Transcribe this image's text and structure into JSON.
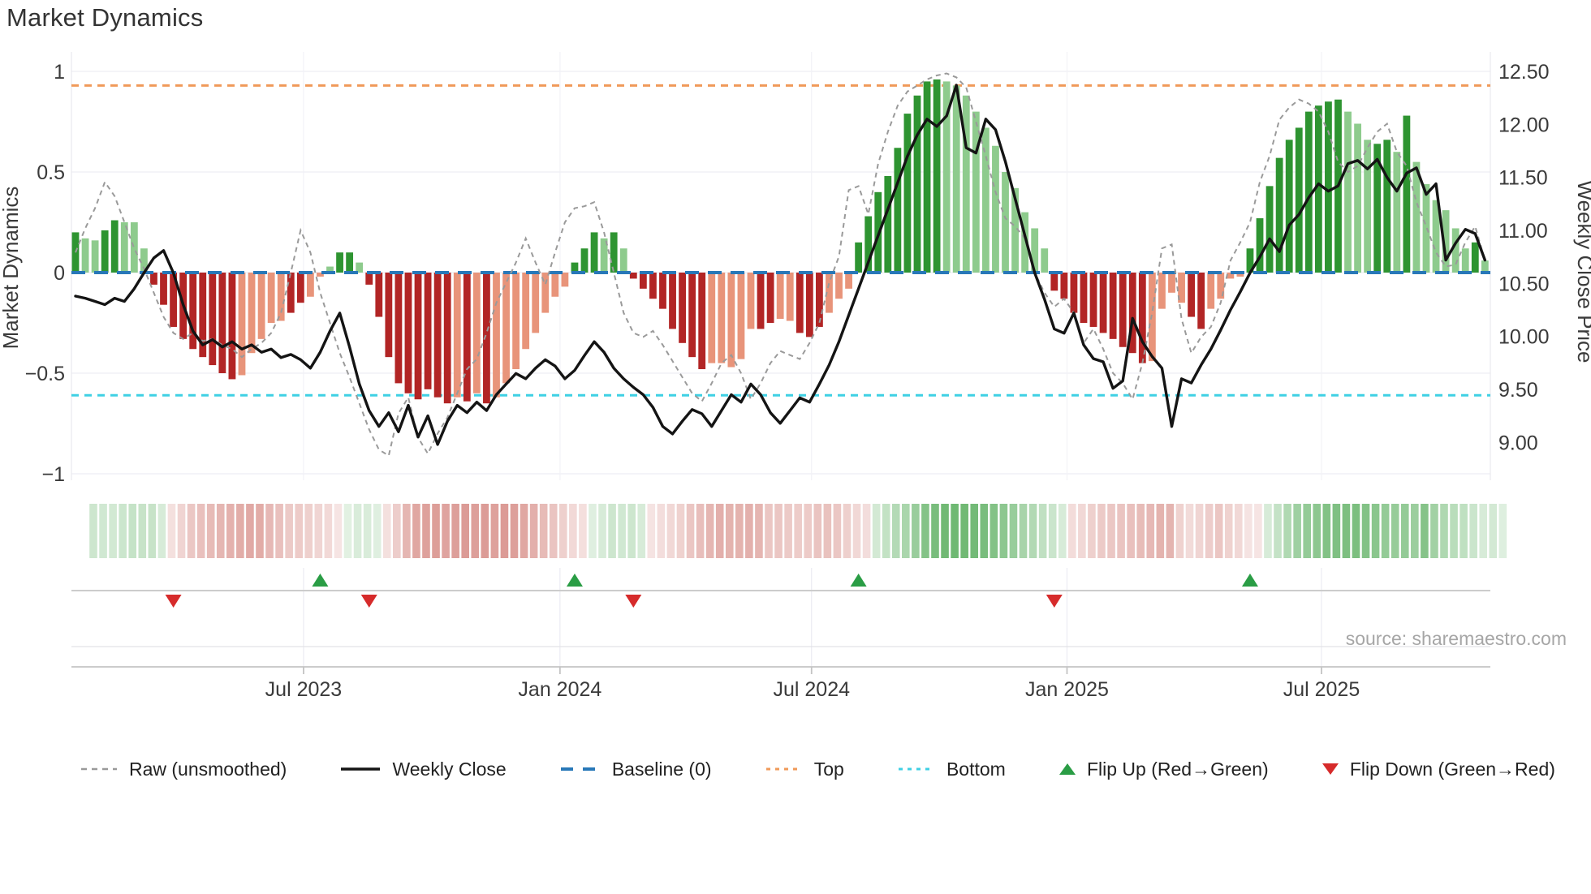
{
  "title": "Market Dynamics",
  "source_note": "source: sharemaestro.com",
  "legend": {
    "raw": "Raw (unsmoothed)",
    "weekly": "Weekly Close",
    "baseline": "Baseline (0)",
    "top": "Top",
    "bottom": "Bottom",
    "flip_up": "Flip Up (Red→Green)",
    "flip_down": "Flip Down (Green→Red)"
  },
  "colors": {
    "bar_green_dark": "#2e9431",
    "bar_green_light": "#8ecb8d",
    "bar_red_dark": "#b22525",
    "bar_red_salmon": "#e8947a",
    "baseline_blue": "#2878b8",
    "top_orange": "#f09a5a",
    "bottom_cyan": "#3fd0e4",
    "price_black": "#141414",
    "raw_gray": "#9a9a9a",
    "flip_up_green": "#2a9d45",
    "flip_down_red": "#d62b2b",
    "grid": "#ededf3",
    "axis_text": "#3a3a3a",
    "source_text": "#a6a6a6"
  },
  "chart_data": {
    "type": "bar",
    "title": "Market Dynamics",
    "ylabel_left": "Market Dynamics",
    "ylabel_right": "Weekly Close Price",
    "y_left_ticks": {
      "labels": [
        "1",
        "0.5",
        "0",
        "−0.5",
        "−1"
      ],
      "values": [
        1,
        0.5,
        0,
        -0.5,
        -1
      ]
    },
    "y_right_ticks": {
      "labels": [
        "12.50",
        "12.00",
        "11.50",
        "11.00",
        "10.50",
        "10.00",
        "9.50",
        "9.00"
      ],
      "values": [
        12.5,
        12.0,
        11.5,
        11.0,
        10.5,
        10.0,
        9.5,
        9.0
      ]
    },
    "x_ticks": {
      "labels": [
        "Jul 2023",
        "Jan 2024",
        "Jul 2024",
        "Jan 2025",
        "Jul 2025"
      ],
      "week_index": [
        23.3,
        49.5,
        75.2,
        101.3,
        127.3
      ]
    },
    "reference_lines": {
      "baseline": 0,
      "top": 0.93,
      "bottom": -0.61
    },
    "weeks_total": 145,
    "series": [
      {
        "name": "Market Dynamics (weekly bars)",
        "type": "bar",
        "values": [
          0.2,
          0.17,
          0.16,
          0.21,
          0.26,
          0.25,
          0.25,
          0.12,
          -0.06,
          -0.16,
          -0.27,
          -0.33,
          -0.38,
          -0.42,
          -0.46,
          -0.5,
          -0.53,
          -0.51,
          -0.4,
          -0.33,
          -0.25,
          -0.24,
          -0.2,
          -0.15,
          -0.12,
          -0.02,
          0.03,
          0.1,
          0.1,
          0.05,
          -0.06,
          -0.22,
          -0.42,
          -0.55,
          -0.6,
          -0.63,
          -0.58,
          -0.62,
          -0.65,
          -0.62,
          -0.64,
          -0.6,
          -0.65,
          -0.62,
          -0.55,
          -0.48,
          -0.38,
          -0.3,
          -0.2,
          -0.12,
          -0.07,
          0.05,
          0.12,
          0.2,
          0.17,
          0.2,
          0.12,
          -0.03,
          -0.08,
          -0.13,
          -0.18,
          -0.28,
          -0.35,
          -0.42,
          -0.48,
          -0.45,
          -0.45,
          -0.47,
          -0.43,
          -0.28,
          -0.28,
          -0.25,
          -0.23,
          -0.24,
          -0.3,
          -0.32,
          -0.27,
          -0.2,
          -0.13,
          -0.08,
          0.15,
          0.28,
          0.4,
          0.48,
          0.62,
          0.79,
          0.88,
          0.95,
          0.96,
          0.95,
          0.93,
          0.88,
          0.8,
          0.72,
          0.63,
          0.5,
          0.42,
          0.3,
          0.22,
          0.12,
          -0.09,
          -0.13,
          -0.2,
          -0.25,
          -0.27,
          -0.3,
          -0.33,
          -0.37,
          -0.4,
          -0.45,
          -0.44,
          -0.18,
          -0.1,
          -0.15,
          -0.22,
          -0.28,
          -0.18,
          -0.13,
          -0.03,
          -0.02,
          0.12,
          0.27,
          0.43,
          0.57,
          0.66,
          0.72,
          0.8,
          0.83,
          0.85,
          0.86,
          0.8,
          0.74,
          0.66,
          0.64,
          0.66,
          0.6,
          0.78,
          0.55,
          0.44,
          0.36,
          0.31,
          0.22,
          0.12,
          0.15,
          0.06
        ],
        "shades": [
          "gd",
          "gl",
          "gl",
          "gd",
          "gd",
          "gl",
          "gl",
          "gl",
          "rd",
          "rd",
          "rd",
          "rd",
          "rd",
          "rd",
          "rd",
          "rd",
          "rd",
          "rs",
          "rs",
          "rs",
          "rs",
          "rs",
          "rd",
          "rd",
          "rs",
          "rs",
          "gl",
          "gd",
          "gd",
          "gl",
          "rd",
          "rd",
          "rd",
          "rd",
          "rd",
          "rd",
          "rd",
          "rd",
          "rd",
          "rs",
          "rd",
          "rs",
          "rd",
          "rs",
          "rs",
          "rs",
          "rs",
          "rs",
          "rs",
          "rs",
          "rs",
          "gd",
          "gd",
          "gd",
          "gl",
          "gd",
          "gl",
          "rd",
          "rd",
          "rd",
          "rd",
          "rd",
          "rd",
          "rd",
          "rd",
          "rs",
          "rs",
          "rs",
          "rs",
          "rs",
          "rd",
          "rd",
          "rs",
          "rs",
          "rd",
          "rd",
          "rd",
          "rs",
          "rs",
          "rs",
          "gd",
          "gd",
          "gd",
          "gd",
          "gd",
          "gd",
          "gd",
          "gd",
          "gd",
          "gl",
          "gl",
          "gl",
          "gl",
          "gl",
          "gl",
          "gl",
          "gl",
          "gl",
          "gl",
          "gl",
          "rd",
          "rd",
          "rd",
          "rd",
          "rd",
          "rd",
          "rd",
          "rd",
          "rd",
          "rd",
          "rs",
          "rs",
          "rs",
          "rs",
          "rd",
          "rd",
          "rs",
          "rs",
          "rs",
          "rs",
          "gd",
          "gd",
          "gd",
          "gd",
          "gd",
          "gd",
          "gd",
          "gd",
          "gd",
          "gd",
          "gl",
          "gl",
          "gl",
          "gd",
          "gd",
          "gl",
          "gd",
          "gl",
          "gl",
          "gl",
          "gl",
          "gl",
          "gl",
          "gd",
          "gl"
        ]
      },
      {
        "name": "Raw (unsmoothed)",
        "type": "line",
        "style": "dashed",
        "axis": "left",
        "values": [
          0.1,
          0.22,
          0.32,
          0.45,
          0.38,
          0.25,
          0.12,
          0.02,
          -0.1,
          -0.22,
          -0.3,
          -0.33,
          -0.3,
          -0.34,
          -0.33,
          -0.36,
          -0.38,
          -0.42,
          -0.38,
          -0.35,
          -0.3,
          -0.2,
          0.0,
          0.21,
          0.1,
          -0.1,
          -0.25,
          -0.4,
          -0.52,
          -0.65,
          -0.78,
          -0.88,
          -0.91,
          -0.7,
          -0.62,
          -0.82,
          -0.9,
          -0.8,
          -0.72,
          -0.6,
          -0.48,
          -0.43,
          -0.3,
          -0.15,
          -0.05,
          0.05,
          0.17,
          0.05,
          -0.06,
          0.1,
          0.25,
          0.32,
          0.33,
          0.35,
          0.2,
          0.0,
          -0.2,
          -0.3,
          -0.32,
          -0.29,
          -0.36,
          -0.44,
          -0.52,
          -0.6,
          -0.64,
          -0.55,
          -0.45,
          -0.41,
          -0.5,
          -0.63,
          -0.55,
          -0.45,
          -0.39,
          -0.41,
          -0.43,
          -0.35,
          -0.25,
          -0.05,
          0.08,
          0.41,
          0.43,
          0.29,
          0.54,
          0.7,
          0.83,
          0.9,
          0.93,
          0.96,
          0.98,
          0.99,
          0.97,
          0.92,
          0.75,
          0.58,
          0.4,
          0.27,
          0.23,
          0.17,
          0.0,
          -0.1,
          -0.17,
          -0.13,
          -0.2,
          -0.35,
          -0.28,
          -0.38,
          -0.5,
          -0.55,
          -0.63,
          -0.45,
          -0.2,
          0.12,
          0.14,
          -0.23,
          -0.4,
          -0.32,
          -0.27,
          -0.15,
          0.06,
          0.15,
          0.25,
          0.45,
          0.58,
          0.76,
          0.82,
          0.86,
          0.84,
          0.8,
          0.7,
          0.55,
          0.5,
          0.53,
          0.62,
          0.7,
          0.74,
          0.6,
          0.53,
          0.35,
          0.23,
          0.1,
          0.03,
          0.04,
          0.15,
          0.23,
          0.06
        ]
      },
      {
        "name": "Weekly Close",
        "type": "line",
        "style": "solid",
        "axis": "right",
        "values": [
          10.38,
          10.36,
          10.33,
          10.3,
          10.36,
          10.33,
          10.45,
          10.6,
          10.74,
          10.81,
          10.6,
          10.3,
          10.05,
          9.92,
          9.97,
          9.9,
          9.95,
          9.88,
          9.92,
          9.85,
          9.88,
          9.8,
          9.83,
          9.78,
          9.7,
          9.85,
          10.05,
          10.22,
          9.9,
          9.55,
          9.3,
          9.15,
          9.28,
          9.1,
          9.35,
          9.05,
          9.25,
          8.98,
          9.2,
          9.35,
          9.28,
          9.38,
          9.3,
          9.45,
          9.55,
          9.65,
          9.6,
          9.7,
          9.78,
          9.72,
          9.6,
          9.68,
          9.82,
          9.95,
          9.85,
          9.7,
          9.6,
          9.52,
          9.45,
          9.33,
          9.15,
          9.08,
          9.2,
          9.31,
          9.27,
          9.15,
          9.3,
          9.45,
          9.38,
          9.55,
          9.45,
          9.28,
          9.18,
          9.3,
          9.42,
          9.38,
          9.55,
          9.73,
          9.95,
          10.2,
          10.45,
          10.7,
          10.95,
          11.2,
          11.45,
          11.7,
          11.9,
          12.05,
          11.98,
          12.08,
          12.37,
          11.78,
          11.73,
          12.05,
          11.95,
          11.65,
          11.3,
          10.95,
          10.6,
          10.35,
          10.07,
          10.03,
          10.22,
          9.92,
          9.79,
          9.76,
          9.51,
          9.58,
          10.17,
          9.95,
          9.81,
          9.7,
          9.15,
          9.6,
          9.56,
          9.73,
          9.88,
          10.06,
          10.25,
          10.42,
          10.6,
          10.75,
          10.92,
          10.8,
          11.05,
          11.15,
          11.31,
          11.44,
          11.37,
          11.42,
          11.63,
          11.66,
          11.58,
          11.67,
          11.5,
          11.37,
          11.54,
          11.59,
          11.34,
          11.44,
          10.72,
          10.88,
          11.01,
          10.97,
          10.72
        ]
      }
    ],
    "flip_markers": [
      {
        "week": 10,
        "dir": "down"
      },
      {
        "week": 25,
        "dir": "up"
      },
      {
        "week": 30,
        "dir": "down"
      },
      {
        "week": 51,
        "dir": "up"
      },
      {
        "week": 57,
        "dir": "down"
      },
      {
        "week": 80,
        "dir": "up"
      },
      {
        "week": 100,
        "dir": "down"
      },
      {
        "week": 120,
        "dir": "up"
      }
    ],
    "heatmap": {
      "note": "pastel strip below main chart mirrors weekly bar values (green positive, red negative, intensity = magnitude)"
    }
  }
}
